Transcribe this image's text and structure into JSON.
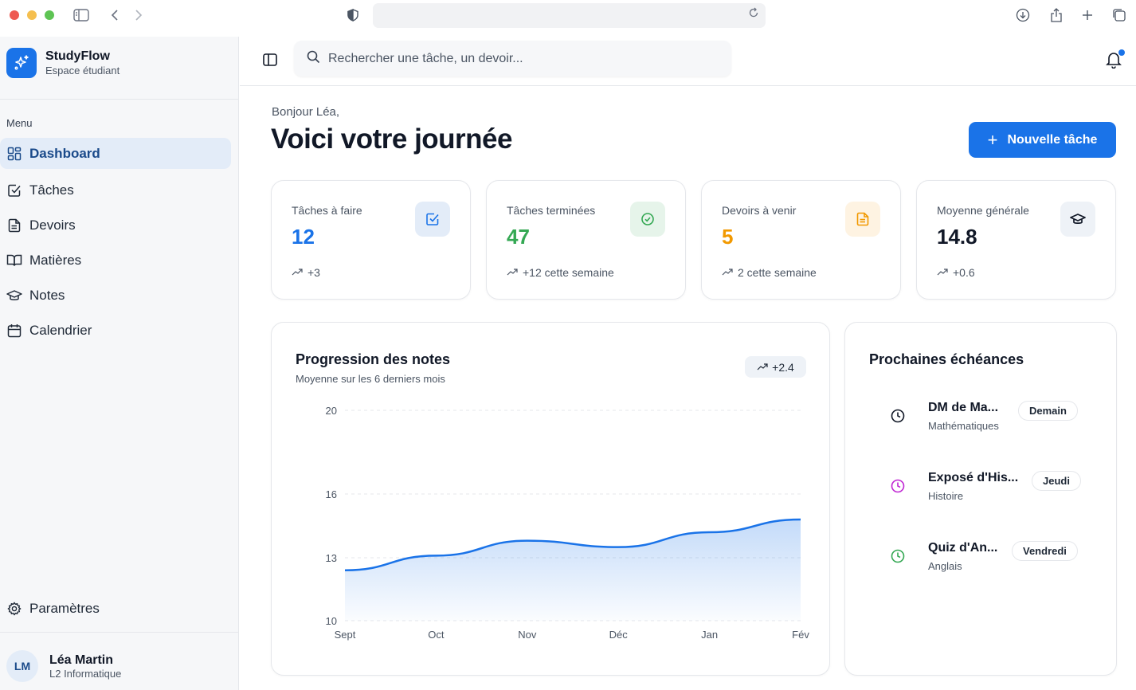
{
  "browser": {
    "address": "",
    "icons": [
      "sidebar-toggle-icon",
      "back-icon",
      "forward-icon",
      "shield-icon",
      "reload-icon",
      "download-icon",
      "share-icon",
      "new-tab-icon",
      "tabs-icon"
    ]
  },
  "brand": {
    "name": "StudyFlow",
    "subtitle": "Espace étudiant",
    "accent": "#1a73e8"
  },
  "sidebar": {
    "menu_label": "Menu",
    "items": [
      {
        "label": "Dashboard",
        "icon": "dashboard-icon",
        "active": true
      },
      {
        "label": "Tâches",
        "icon": "checkbox-icon"
      },
      {
        "label": "Devoirs",
        "icon": "document-icon"
      },
      {
        "label": "Matières",
        "icon": "book-icon"
      },
      {
        "label": "Notes",
        "icon": "graduation-cap-icon"
      },
      {
        "label": "Calendrier",
        "icon": "calendar-icon"
      }
    ],
    "settings_label": "Paramètres",
    "user": {
      "initials": "LM",
      "name": "Léa Martin",
      "subtitle": "L2 Informatique"
    }
  },
  "topbar": {
    "search_placeholder": "Rechercher une tâche, un devoir...",
    "notification_dot": true
  },
  "main": {
    "greeting": "Bonjour Léa,",
    "title": "Voici votre journée",
    "new_task_label": "Nouvelle tâche",
    "stats": [
      {
        "label": "Tâches à faire",
        "value": "12",
        "trend": "+3",
        "color": "#1a73e8",
        "icon_bg": "#e3ecf8",
        "icon": "checkbox-icon"
      },
      {
        "label": "Tâches terminées",
        "value": "47",
        "trend": "+12 cette semaine",
        "color": "#34a853",
        "icon_bg": "#e6f4ea",
        "icon": "check-circle-icon"
      },
      {
        "label": "Devoirs à venir",
        "value": "5",
        "trend": "2 cette semaine",
        "color": "#f29900",
        "icon_bg": "#fef3e2",
        "icon": "document-icon"
      },
      {
        "label": "Moyenne générale",
        "value": "14.8",
        "trend": "+0.6",
        "color": "#111827",
        "icon_bg": "#eef2f7",
        "icon": "graduation-cap-icon"
      }
    ],
    "chart": {
      "title": "Progression des notes",
      "subtitle": "Moyenne sur les 6 derniers mois",
      "badge": "+2.4"
    },
    "deadlines": {
      "title": "Prochaines échéances",
      "items": [
        {
          "name": "DM de Ma...",
          "subject": "Mathématiques",
          "when": "Demain",
          "color": "#111827"
        },
        {
          "name": "Exposé d'His...",
          "subject": "Histoire",
          "when": "Jeudi",
          "color": "#c026d3"
        },
        {
          "name": "Quiz d'An...",
          "subject": "Anglais",
          "when": "Vendredi",
          "color": "#34a853"
        }
      ]
    }
  },
  "chart_data": {
    "type": "area",
    "title": "Progression des notes",
    "subtitle": "Moyenne sur les 6 derniers mois",
    "categories": [
      "Sept",
      "Oct",
      "Nov",
      "Déc",
      "Jan",
      "Fév"
    ],
    "values": [
      12.4,
      13.1,
      13.8,
      13.5,
      14.2,
      14.8
    ],
    "y_ticks": [
      10,
      13,
      16,
      20
    ],
    "ylim": [
      10,
      20
    ],
    "grid": true,
    "line_color": "#1a73e8"
  }
}
